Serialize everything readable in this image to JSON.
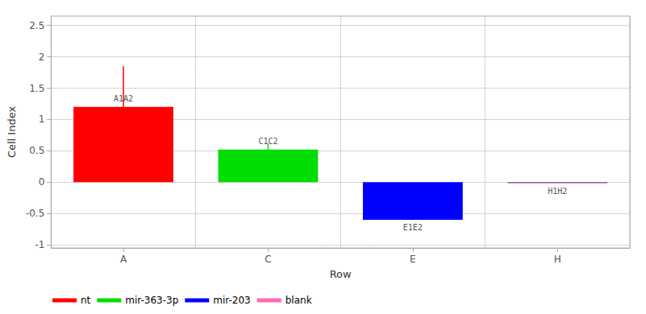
{
  "chart_data": {
    "type": "bar",
    "categories": [
      "A",
      "C",
      "E",
      "H"
    ],
    "values": [
      1.2,
      0.52,
      -0.6,
      -0.015
    ],
    "colors": [
      "#ff0000",
      "#00dd00",
      "#0000ff",
      "#993399"
    ],
    "annotations": [
      "A1A2",
      "C1C2",
      "E1E2",
      "H1H2"
    ],
    "error_up": [
      0.65,
      0.1,
      0.0,
      0.0
    ],
    "xlabel": "Row",
    "ylabel": "Cell Index",
    "ylim": [
      -1.05,
      2.65
    ],
    "yticks": [
      -1,
      -0.5,
      0,
      0.5,
      1,
      1.5,
      2,
      2.5
    ],
    "grid": true,
    "legend": "bottom left",
    "legend_entries": [
      {
        "name": "nt",
        "color": "#ff0000"
      },
      {
        "name": "mir-363-3p",
        "color": "#00dd00"
      },
      {
        "name": "mir-203",
        "color": "#0000ff"
      },
      {
        "name": "blank",
        "color": "#ff69b4"
      }
    ]
  }
}
